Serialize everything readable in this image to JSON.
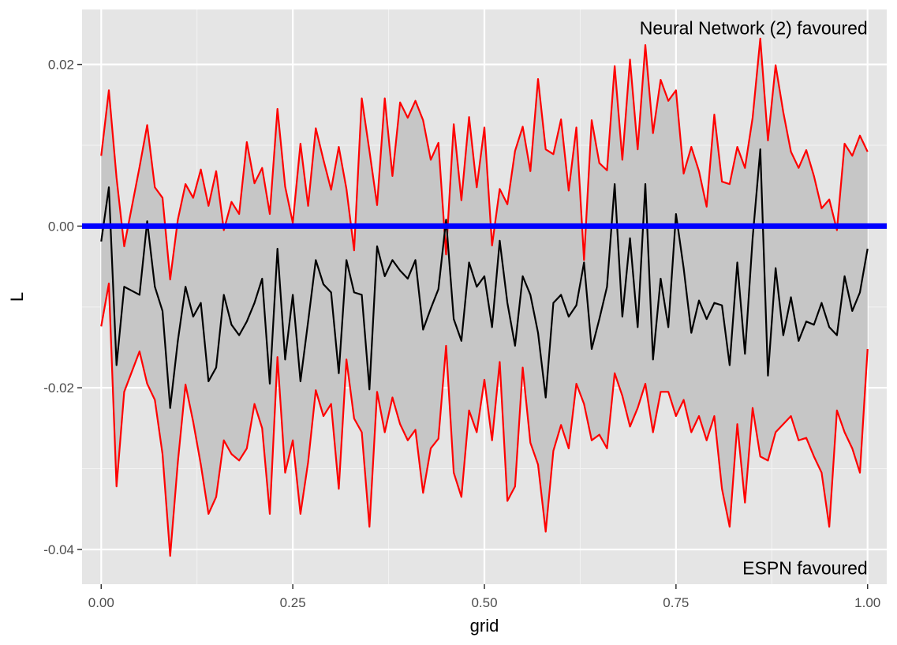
{
  "chart_data": {
    "type": "line",
    "xlabel": "grid",
    "ylabel": "L",
    "xlim": [
      -0.025,
      1.025
    ],
    "ylim": [
      -0.0443,
      0.0268
    ],
    "grid": true,
    "panel_background": "#e5e5e5",
    "band_fill": "#c6c6c6",
    "x_ticks": [
      {
        "value": 0.0,
        "label": "0.00"
      },
      {
        "value": 0.25,
        "label": "0.25"
      },
      {
        "value": 0.5,
        "label": "0.50"
      },
      {
        "value": 0.75,
        "label": "0.75"
      },
      {
        "value": 1.0,
        "label": "1.00"
      }
    ],
    "y_ticks": [
      {
        "value": 0.02,
        "label": "0.02"
      },
      {
        "value": 0.0,
        "label": "0.00"
      },
      {
        "value": -0.02,
        "label": "-0.02"
      },
      {
        "value": -0.04,
        "label": "-0.04"
      }
    ],
    "annotations": [
      {
        "text": "Neural Network (2) favoured",
        "x": 1.0,
        "y": 0.0245
      },
      {
        "text": "ESPN favoured",
        "x": 1.0,
        "y": -0.0423
      }
    ],
    "reference_line": {
      "y": 0.0,
      "color": "#0000ff"
    },
    "series": [
      {
        "role": "upper",
        "color": "#ff0000",
        "x": [
          0.0,
          0.01,
          0.02,
          0.03,
          0.05,
          0.06,
          0.07,
          0.08,
          0.09,
          0.1,
          0.11,
          0.12,
          0.13,
          0.14,
          0.15,
          0.16,
          0.17,
          0.18,
          0.19,
          0.2,
          0.21,
          0.22,
          0.23,
          0.24,
          0.25,
          0.26,
          0.27,
          0.28,
          0.29,
          0.3,
          0.31,
          0.32,
          0.33,
          0.34,
          0.35,
          0.36,
          0.37,
          0.38,
          0.39,
          0.4,
          0.41,
          0.42,
          0.43,
          0.44,
          0.45,
          0.46,
          0.47,
          0.48,
          0.49,
          0.5,
          0.51,
          0.52,
          0.53,
          0.54,
          0.55,
          0.56,
          0.57,
          0.58,
          0.59,
          0.6,
          0.61,
          0.62,
          0.63,
          0.64,
          0.65,
          0.66,
          0.67,
          0.68,
          0.69,
          0.7,
          0.71,
          0.72,
          0.73,
          0.74,
          0.75,
          0.76,
          0.77,
          0.78,
          0.79,
          0.8,
          0.81,
          0.82,
          0.83,
          0.84,
          0.85,
          0.86,
          0.87,
          0.88,
          0.89,
          0.9,
          0.91,
          0.92,
          0.93,
          0.94,
          0.95,
          0.96,
          0.97,
          0.98,
          0.99,
          1.0
        ],
        "y": [
          0.0087,
          0.0168,
          0.006,
          -0.0025,
          0.0073,
          0.0125,
          0.0048,
          0.0035,
          -0.0066,
          0.0008,
          0.0052,
          0.0035,
          0.007,
          0.0025,
          0.0068,
          -0.0005,
          0.003,
          0.0015,
          0.0104,
          0.0053,
          0.0072,
          0.0015,
          0.0145,
          0.0049,
          0.0004,
          0.0102,
          0.0025,
          0.0121,
          0.0082,
          0.0045,
          0.0098,
          0.0046,
          -0.003,
          0.0158,
          0.0093,
          0.0026,
          0.0158,
          0.0062,
          0.0153,
          0.0134,
          0.0155,
          0.0131,
          0.0082,
          0.0103,
          -0.0035,
          0.0126,
          0.0032,
          0.0135,
          0.0048,
          0.0122,
          -0.0024,
          0.0046,
          0.0027,
          0.0093,
          0.0123,
          0.0068,
          0.0182,
          0.0095,
          0.0089,
          0.0132,
          0.0044,
          0.0122,
          -0.0042,
          0.0131,
          0.0078,
          0.0069,
          0.0198,
          0.0082,
          0.0206,
          0.0095,
          0.0224,
          0.0115,
          0.0181,
          0.0155,
          0.0168,
          0.0065,
          0.0098,
          0.0068,
          0.0024,
          0.0138,
          0.0055,
          0.0052,
          0.0098,
          0.0072,
          0.0134,
          0.0232,
          0.0106,
          0.0199,
          0.0141,
          0.0092,
          0.0072,
          0.0094,
          0.0062,
          0.0022,
          0.0033,
          -0.0005,
          0.0102,
          0.0087,
          0.0112,
          0.0092
        ]
      },
      {
        "role": "lower",
        "color": "#ff0000",
        "x": [
          0.0,
          0.01,
          0.02,
          0.03,
          0.05,
          0.06,
          0.07,
          0.08,
          0.09,
          0.1,
          0.11,
          0.12,
          0.13,
          0.14,
          0.15,
          0.16,
          0.17,
          0.18,
          0.19,
          0.2,
          0.21,
          0.22,
          0.23,
          0.24,
          0.25,
          0.26,
          0.27,
          0.28,
          0.29,
          0.3,
          0.31,
          0.32,
          0.33,
          0.34,
          0.35,
          0.36,
          0.37,
          0.38,
          0.39,
          0.4,
          0.41,
          0.42,
          0.43,
          0.44,
          0.45,
          0.46,
          0.47,
          0.48,
          0.49,
          0.5,
          0.51,
          0.52,
          0.53,
          0.54,
          0.55,
          0.56,
          0.57,
          0.58,
          0.59,
          0.6,
          0.61,
          0.62,
          0.63,
          0.64,
          0.65,
          0.66,
          0.67,
          0.68,
          0.69,
          0.7,
          0.71,
          0.72,
          0.73,
          0.74,
          0.75,
          0.76,
          0.77,
          0.78,
          0.79,
          0.8,
          0.81,
          0.82,
          0.83,
          0.84,
          0.85,
          0.86,
          0.87,
          0.88,
          0.89,
          0.9,
          0.91,
          0.92,
          0.93,
          0.94,
          0.95,
          0.96,
          0.97,
          0.98,
          0.99,
          1.0
        ],
        "y": [
          -0.0124,
          -0.0071,
          -0.0322,
          -0.0205,
          -0.0155,
          -0.0195,
          -0.0215,
          -0.0282,
          -0.0408,
          -0.0292,
          -0.0196,
          -0.0242,
          -0.0295,
          -0.0356,
          -0.0335,
          -0.0265,
          -0.0282,
          -0.029,
          -0.0275,
          -0.022,
          -0.025,
          -0.0356,
          -0.0162,
          -0.0305,
          -0.0265,
          -0.0356,
          -0.0292,
          -0.0203,
          -0.0235,
          -0.022,
          -0.0325,
          -0.0165,
          -0.0238,
          -0.0255,
          -0.0372,
          -0.0205,
          -0.0255,
          -0.0212,
          -0.0245,
          -0.0265,
          -0.0252,
          -0.033,
          -0.0275,
          -0.0263,
          -0.0148,
          -0.0305,
          -0.0335,
          -0.0228,
          -0.0255,
          -0.019,
          -0.0265,
          -0.0168,
          -0.034,
          -0.0322,
          -0.0175,
          -0.0268,
          -0.0295,
          -0.0378,
          -0.0278,
          -0.0246,
          -0.0275,
          -0.0195,
          -0.022,
          -0.0265,
          -0.0258,
          -0.0275,
          -0.0182,
          -0.021,
          -0.0248,
          -0.0225,
          -0.0195,
          -0.0255,
          -0.0205,
          -0.0205,
          -0.0235,
          -0.0215,
          -0.0255,
          -0.0235,
          -0.0265,
          -0.0235,
          -0.0325,
          -0.0372,
          -0.0245,
          -0.0342,
          -0.0225,
          -0.0285,
          -0.029,
          -0.0255,
          -0.0245,
          -0.0235,
          -0.0265,
          -0.0262,
          -0.0285,
          -0.0305,
          -0.0372,
          -0.0228,
          -0.0255,
          -0.0275,
          -0.0305,
          -0.0152
        ]
      },
      {
        "role": "estimate",
        "color": "#000000",
        "x": [
          0.0,
          0.01,
          0.02,
          0.03,
          0.05,
          0.06,
          0.07,
          0.08,
          0.09,
          0.1,
          0.11,
          0.12,
          0.13,
          0.14,
          0.15,
          0.16,
          0.17,
          0.18,
          0.19,
          0.2,
          0.21,
          0.22,
          0.23,
          0.24,
          0.25,
          0.26,
          0.27,
          0.28,
          0.29,
          0.3,
          0.31,
          0.32,
          0.33,
          0.34,
          0.35,
          0.36,
          0.37,
          0.38,
          0.39,
          0.4,
          0.41,
          0.42,
          0.43,
          0.44,
          0.45,
          0.46,
          0.47,
          0.48,
          0.49,
          0.5,
          0.51,
          0.52,
          0.53,
          0.54,
          0.55,
          0.56,
          0.57,
          0.58,
          0.59,
          0.6,
          0.61,
          0.62,
          0.63,
          0.64,
          0.65,
          0.66,
          0.67,
          0.68,
          0.69,
          0.7,
          0.71,
          0.72,
          0.73,
          0.74,
          0.75,
          0.76,
          0.77,
          0.78,
          0.79,
          0.8,
          0.81,
          0.82,
          0.83,
          0.84,
          0.85,
          0.86,
          0.87,
          0.88,
          0.89,
          0.9,
          0.91,
          0.92,
          0.93,
          0.94,
          0.95,
          0.96,
          0.97,
          0.98,
          0.99,
          1.0
        ],
        "y": [
          -0.0019,
          0.0048,
          -0.0172,
          -0.0075,
          -0.0085,
          0.0006,
          -0.0075,
          -0.0105,
          -0.0225,
          -0.0142,
          -0.0075,
          -0.0112,
          -0.0095,
          -0.0192,
          -0.0175,
          -0.0085,
          -0.0122,
          -0.0135,
          -0.0118,
          -0.0095,
          -0.0065,
          -0.0195,
          -0.0028,
          -0.0165,
          -0.0085,
          -0.0192,
          -0.0118,
          -0.0042,
          -0.0072,
          -0.0082,
          -0.0182,
          -0.0042,
          -0.0082,
          -0.0085,
          -0.0202,
          -0.0025,
          -0.0062,
          -0.0042,
          -0.0055,
          -0.0065,
          -0.0042,
          -0.0128,
          -0.0102,
          -0.0078,
          0.0008,
          -0.0115,
          -0.0142,
          -0.0045,
          -0.0075,
          -0.0062,
          -0.0125,
          -0.0018,
          -0.0095,
          -0.0148,
          -0.0062,
          -0.0085,
          -0.0132,
          -0.0212,
          -0.0095,
          -0.0085,
          -0.0112,
          -0.0098,
          -0.0045,
          -0.0152,
          -0.0115,
          -0.0075,
          0.0052,
          -0.0112,
          -0.0015,
          -0.0125,
          0.0052,
          -0.0165,
          -0.0065,
          -0.0125,
          0.0015,
          -0.0052,
          -0.0132,
          -0.0092,
          -0.0115,
          -0.0095,
          -0.0098,
          -0.0172,
          -0.0045,
          -0.0158,
          -0.0015,
          0.0095,
          -0.0185,
          -0.0052,
          -0.0135,
          -0.0088,
          -0.0142,
          -0.0118,
          -0.0122,
          -0.0095,
          -0.0125,
          -0.0135,
          -0.0062,
          -0.0105,
          -0.0082,
          -0.0028
        ]
      }
    ]
  }
}
